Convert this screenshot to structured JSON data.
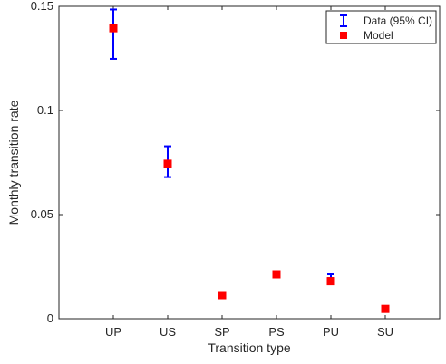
{
  "chart_data": {
    "type": "scatter",
    "categories": [
      "UP",
      "US",
      "SP",
      "PS",
      "PU",
      "SU"
    ],
    "xlabel": "Transition type",
    "ylabel": "Monthly transition rate",
    "ylim": [
      0,
      0.15
    ],
    "yticks": [
      "0",
      "0.05",
      "0.1",
      "0.15"
    ],
    "grid": false,
    "legend_position": "top-right",
    "series": [
      {
        "name": "Data (95% CI)",
        "marker": "errorbar",
        "color": "#0000ff",
        "values": [
          0.1385,
          0.0748,
          0.0113,
          0.0211,
          0.0195,
          0.0047
        ],
        "ci_low": [
          0.1248,
          0.068,
          0.0105,
          0.0203,
          0.0171,
          0.004
        ],
        "ci_high": [
          0.1485,
          0.0828,
          0.0121,
          0.0219,
          0.0213,
          0.0055
        ]
      },
      {
        "name": "Model",
        "marker": "square",
        "color": "#ff0000",
        "values": [
          0.1395,
          0.0744,
          0.0113,
          0.0213,
          0.018,
          0.0047
        ]
      }
    ]
  }
}
